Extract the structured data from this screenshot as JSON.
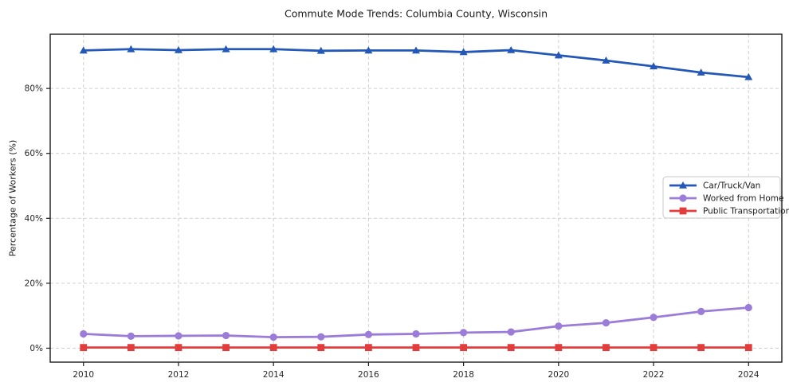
{
  "chart_data": {
    "type": "line",
    "title": "Commute Mode Trends: Columbia County, Wisconsin",
    "xlabel": "",
    "ylabel": "Percentage of Workers (%)",
    "x": [
      2010,
      2011,
      2012,
      2013,
      2014,
      2015,
      2016,
      2017,
      2018,
      2019,
      2020,
      2021,
      2022,
      2023,
      2024
    ],
    "xticks": [
      2010,
      2012,
      2014,
      2016,
      2018,
      2020,
      2022,
      2024
    ],
    "xtick_labels": [
      "2010",
      "2012",
      "2014",
      "2016",
      "2018",
      "2020",
      "2022",
      "2024"
    ],
    "yticks": [
      0,
      20,
      40,
      60,
      80
    ],
    "ytick_labels": [
      "0%",
      "20%",
      "40%",
      "60%",
      "80%"
    ],
    "xlim": [
      2009.3,
      2024.7
    ],
    "ylim": [
      -4.3,
      96.7
    ],
    "grid": true,
    "grid_style": "dashed",
    "legend_position": "center right",
    "series": [
      {
        "name": "Car/Truck/Van",
        "color": "#2458b8",
        "marker": "triangle",
        "values": [
          91.7,
          92.1,
          91.8,
          92.1,
          92.1,
          91.6,
          91.7,
          91.7,
          91.2,
          91.8,
          90.2,
          88.6,
          86.8,
          84.9,
          83.5
        ]
      },
      {
        "name": "Worked from Home",
        "color": "#9b7cd8",
        "marker": "circle",
        "values": [
          4.4,
          3.7,
          3.8,
          3.9,
          3.4,
          3.5,
          4.2,
          4.4,
          4.8,
          5.0,
          6.8,
          7.8,
          9.5,
          11.3,
          12.5
        ]
      },
      {
        "name": "Public Transportation",
        "color": "#e23c3c",
        "marker": "square",
        "values": [
          0.2,
          0.2,
          0.2,
          0.2,
          0.2,
          0.2,
          0.2,
          0.2,
          0.2,
          0.2,
          0.2,
          0.2,
          0.2,
          0.2,
          0.2
        ]
      }
    ],
    "colors": {
      "spine": "#1a1a1a",
      "grid": "#cfcfcf",
      "tick_text": "#262626",
      "legend_border": "#c9c9c9",
      "legend_bg": "#ffffff"
    }
  }
}
